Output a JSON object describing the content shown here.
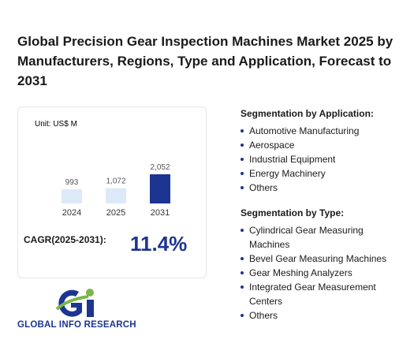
{
  "header": {
    "title": "Global Precision Gear Inspection Machines Market 2025 by Manufacturers, Regions, Type and Application, Forecast to 2031"
  },
  "chart_data": {
    "type": "bar",
    "unit_label": "Unit: US$ M",
    "categories": [
      "2024",
      "2025",
      "2031"
    ],
    "values": [
      993,
      1072,
      2052
    ],
    "value_labels": [
      "993",
      "1,072",
      "2,052"
    ],
    "colors": [
      "#dce9f8",
      "#dce9f8",
      "#1c3591"
    ]
  },
  "cagr": {
    "label": "CAGR(2025-2031):",
    "value": "11.4%"
  },
  "segments": [
    {
      "heading": "Segmentation by Application:",
      "items": [
        "Automotive Manufacturing",
        "Aerospace",
        "Industrial Equipment",
        "Energy Machinery",
        "Others"
      ]
    },
    {
      "heading": "Segmentation by Type:",
      "items": [
        "Cylindrical Gear Measuring Machines",
        "Bevel Gear Measuring Machines",
        "Gear Meshing Analyzers",
        "Integrated Gear Measurement Centers",
        "Others"
      ]
    }
  ],
  "logo": {
    "text": "GLOBAL INFO RESEARCH"
  }
}
